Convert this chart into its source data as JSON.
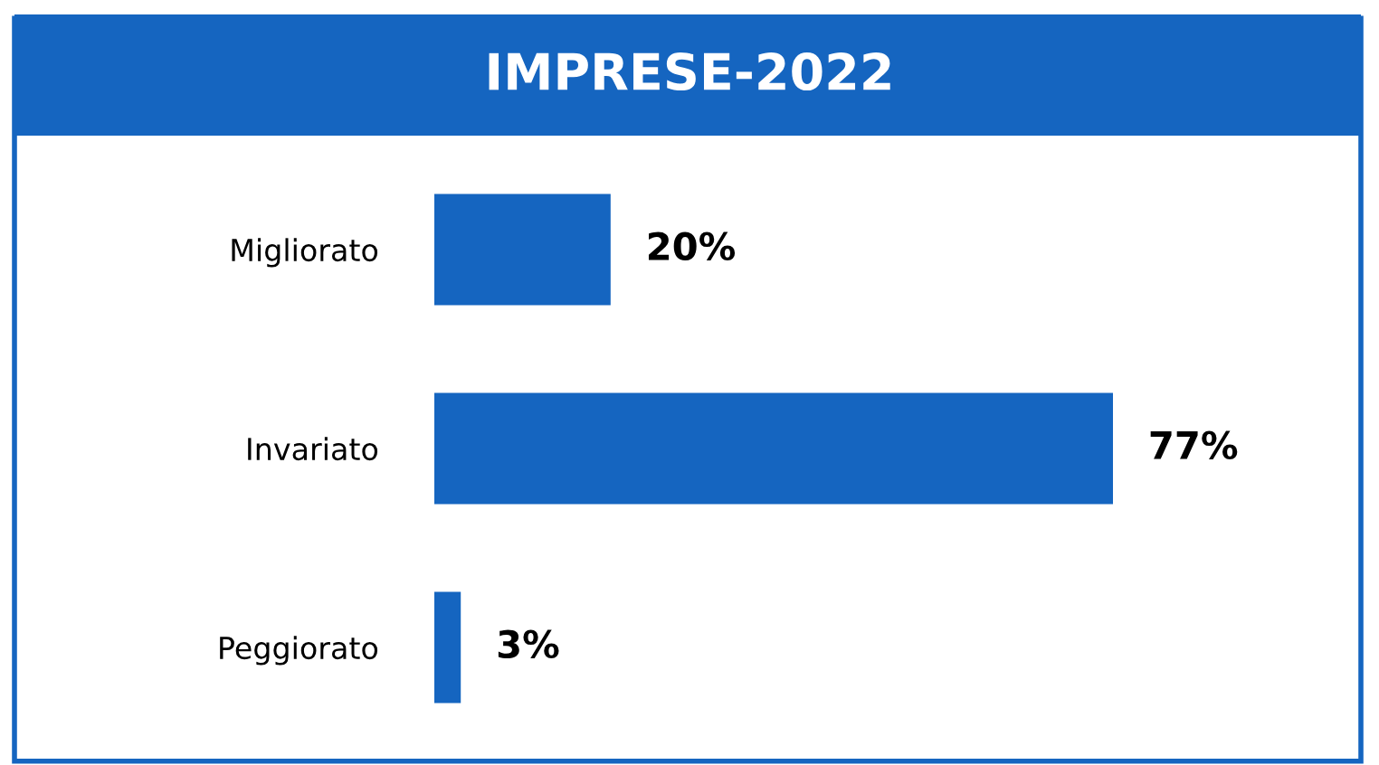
{
  "chart_data": {
    "type": "bar",
    "orientation": "horizontal",
    "title": "IMPRESE-2022",
    "categories": [
      "Migliorato",
      "Invariato",
      "Peggiorato"
    ],
    "values": [
      20,
      77,
      3
    ],
    "value_labels": [
      "20%",
      "77%",
      "3%"
    ],
    "color": "#1565c0",
    "grid": false,
    "legend": false
  }
}
